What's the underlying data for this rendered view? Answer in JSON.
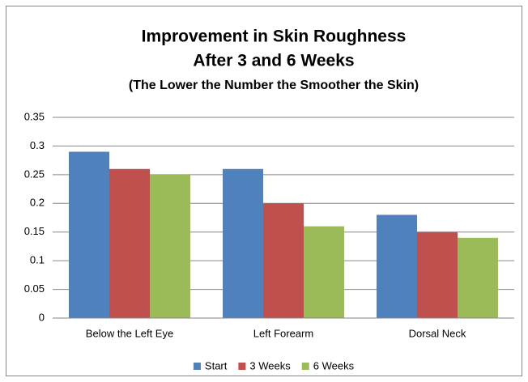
{
  "chart_data": {
    "type": "bar",
    "title": [
      "Improvement in Skin Roughness",
      "After 3 and 6 Weeks"
    ],
    "subtitle": "(The Lower the Number the Smoother the Skin)",
    "categories": [
      "Below the Left Eye",
      "Left Forearm",
      "Dorsal Neck"
    ],
    "series": [
      {
        "name": "Start",
        "color": "#4f81bd",
        "values": [
          0.29,
          0.26,
          0.18
        ]
      },
      {
        "name": "3 Weeks",
        "color": "#c0504d",
        "values": [
          0.26,
          0.2,
          0.15
        ]
      },
      {
        "name": "6 Weeks",
        "color": "#9bbb59",
        "values": [
          0.25,
          0.16,
          0.14
        ]
      }
    ],
    "ylim": [
      0,
      0.35
    ],
    "yticks": [
      0,
      0.05,
      0.1,
      0.15,
      0.2,
      0.25,
      0.3,
      0.35
    ],
    "grid": true,
    "legend": "bottom"
  }
}
